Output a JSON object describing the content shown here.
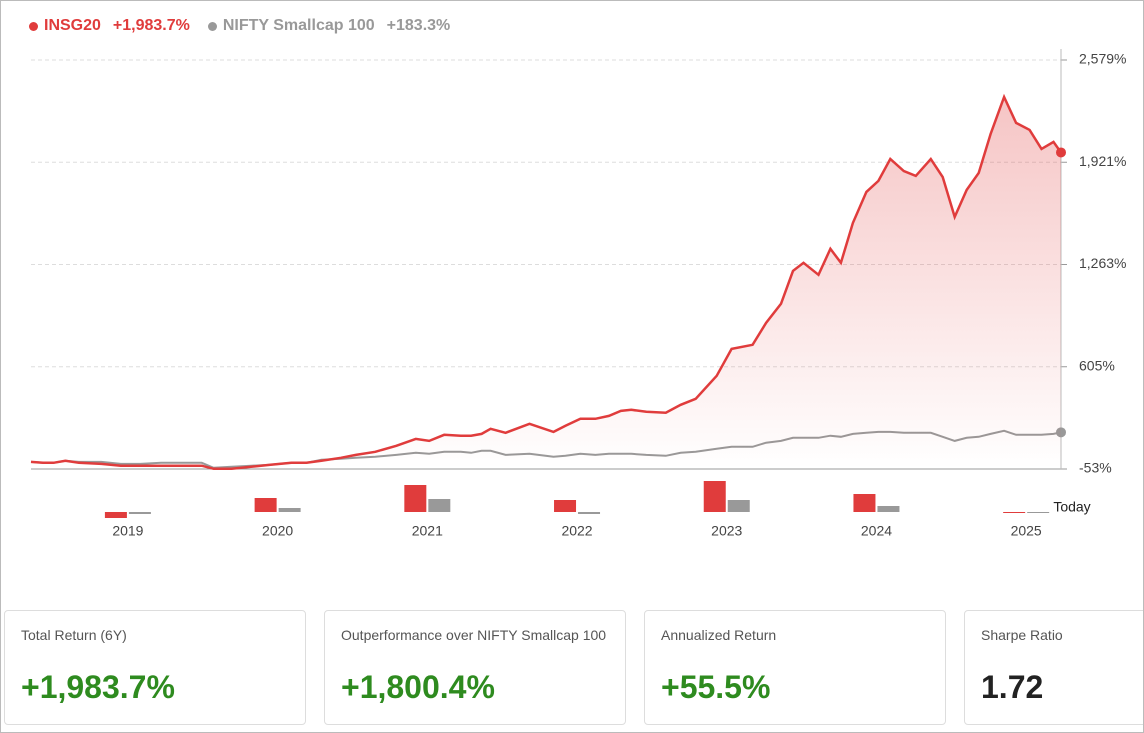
{
  "chart_data": {
    "type": "line",
    "x": [
      2018.68,
      2018.76,
      2018.83,
      2018.91,
      2019.0,
      2019.15,
      2019.28,
      2019.41,
      2019.55,
      2019.68,
      2019.82,
      2019.9,
      2020.02,
      2020.15,
      2020.28,
      2020.42,
      2020.52,
      2020.62,
      2020.75,
      2020.85,
      2020.98,
      2021.12,
      2021.25,
      2021.34,
      2021.44,
      2021.55,
      2021.62,
      2021.69,
      2021.75,
      2021.85,
      2022.01,
      2022.17,
      2022.25,
      2022.35,
      2022.45,
      2022.54,
      2022.62,
      2022.69,
      2022.79,
      2022.92,
      2023.02,
      2023.12,
      2023.26,
      2023.36,
      2023.5,
      2023.59,
      2023.69,
      2023.77,
      2023.84,
      2023.94,
      2024.02,
      2024.09,
      2024.17,
      2024.26,
      2024.34,
      2024.42,
      2024.51,
      2024.59,
      2024.69,
      2024.77,
      2024.85,
      2024.93,
      2025.01,
      2025.09,
      2025.18,
      2025.26,
      2025.35,
      2025.43,
      2025.51,
      2025.56
    ],
    "series": [
      {
        "name": "INSG20",
        "total_return": "+1,983.7%",
        "color": "#e03c3c",
        "values": [
          -7,
          -13,
          -13,
          0,
          -13,
          -20,
          -32,
          -32,
          -32,
          -32,
          -32,
          -52,
          -52,
          -39,
          -26,
          -13,
          -13,
          0,
          19,
          38,
          58,
          96,
          141,
          128,
          167,
          161,
          161,
          173,
          206,
          180,
          238,
          186,
          225,
          270,
          270,
          289,
          321,
          328,
          315,
          309,
          360,
          399,
          547,
          720,
          746,
          888,
          1010,
          1222,
          1274,
          1197,
          1364,
          1274,
          1531,
          1730,
          1801,
          1942,
          1865,
          1833,
          1942,
          1826,
          1569,
          1743,
          1852,
          2103,
          2341,
          2174,
          2129,
          2007,
          2052,
          1984
        ]
      },
      {
        "name": "NIFTY Smallcap 100",
        "total_return": "+183.3%",
        "color": "#999999",
        "values": [
          -7,
          -13,
          -13,
          0,
          -7,
          -7,
          -20,
          -20,
          -13,
          -13,
          -13,
          -45,
          -39,
          -32,
          -26,
          -13,
          -13,
          6,
          13,
          19,
          26,
          38,
          51,
          45,
          58,
          58,
          51,
          64,
          64,
          38,
          45,
          26,
          32,
          45,
          38,
          45,
          45,
          45,
          38,
          32,
          51,
          58,
          77,
          90,
          90,
          116,
          128,
          148,
          148,
          148,
          161,
          154,
          173,
          180,
          186,
          186,
          180,
          180,
          180,
          154,
          128,
          148,
          154,
          173,
          193,
          167,
          167,
          167,
          173,
          183
        ]
      }
    ],
    "xlim": [
      2018.68,
      2025.56
    ],
    "xticks": [
      2019,
      2020,
      2021,
      2022,
      2023,
      2024,
      2025
    ],
    "ylim": [
      -53,
      2579
    ],
    "yticks": [
      {
        "value": -53,
        "label": "-53%"
      },
      {
        "value": 605,
        "label": "605%"
      },
      {
        "value": 1263,
        "label": "1,263%"
      },
      {
        "value": 1921,
        "label": "1,921%"
      },
      {
        "value": 2579,
        "label": "2,579%"
      }
    ],
    "grid": true,
    "today_label": "Today",
    "annual_returns": {
      "ylim": [
        -40,
        130
      ],
      "series": [
        {
          "values": [
            -24,
            56,
            108,
            48,
            124,
            72,
            -4
          ]
        },
        {
          "values": [
            -8,
            16,
            52,
            -8,
            48,
            24,
            -4
          ]
        }
      ]
    }
  },
  "cards": [
    {
      "label": "Total Return (6Y)",
      "value": "+1,983.7%"
    },
    {
      "label": "Outperformance over NIFTY Smallcap 100",
      "value": "+1,800.4%"
    },
    {
      "label": "Annualized Return",
      "value": "+55.5%"
    },
    {
      "label": "Sharpe Ratio",
      "value": "1.72"
    }
  ]
}
